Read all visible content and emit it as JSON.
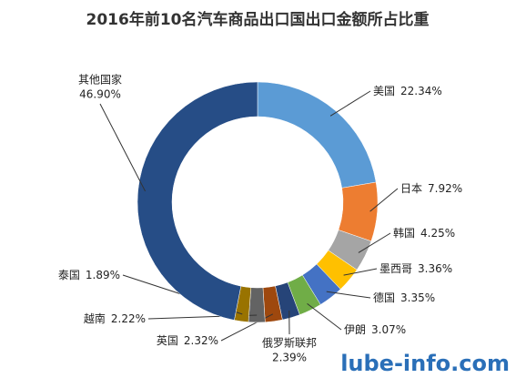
{
  "chart_data": {
    "type": "donut",
    "title": "2016年前10名汽车商品出口国出口金额所占比重",
    "categories": [
      "美国",
      "日本",
      "韩国",
      "墨西哥",
      "德国",
      "伊朗",
      "俄罗斯联邦",
      "英国",
      "越南",
      "泰国",
      "其他国家"
    ],
    "values": [
      22.34,
      7.92,
      4.25,
      3.36,
      3.35,
      3.07,
      2.39,
      2.32,
      2.22,
      1.89,
      46.9
    ],
    "value_labels": [
      "22.34%",
      "7.92%",
      "4.25%",
      "3.36%",
      "3.35%",
      "3.07%",
      "2.39%",
      "2.32%",
      "2.22%",
      "1.89%",
      "46.90%"
    ],
    "colors": [
      "#5b9bd5",
      "#ed7d31",
      "#a5a5a5",
      "#ffc000",
      "#4472c4",
      "#70ad47",
      "#264478",
      "#9e480e",
      "#636363",
      "#997300",
      "#264d86"
    ],
    "watermark": "lube-info.com"
  }
}
